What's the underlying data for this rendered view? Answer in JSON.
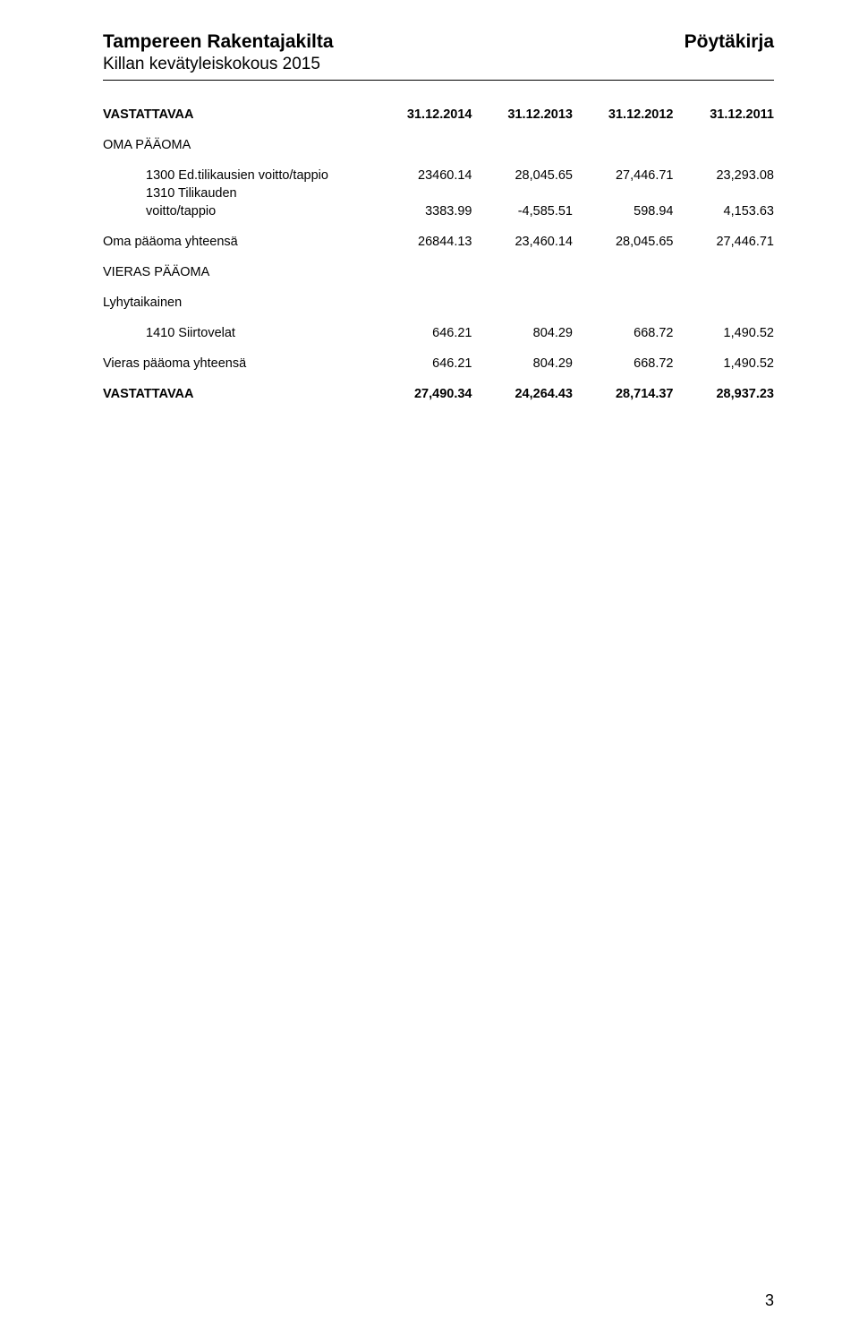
{
  "header": {
    "title": "Tampereen Rakentajakilta",
    "right": "Pöytäkirja",
    "subtitle": "Killan kevätyleiskokous 2015"
  },
  "columns": {
    "label": "VASTATTAVAA",
    "c1": "31.12.2014",
    "c2": "31.12.2013",
    "c3": "31.12.2012",
    "c4": "31.12.2011"
  },
  "sections": {
    "oma_paaoma_title": "OMA PÄÄOMA",
    "vieras_paaoma_title": "VIERAS PÄÄOMA",
    "lyhytaikainen_title": "Lyhytaikainen"
  },
  "rows": {
    "r1300": {
      "label": "1300 Ed.tilikausien voitto/tappio",
      "c1": "23460.14",
      "c2": "28,045.65",
      "c3": "27,446.71",
      "c4": "23,293.08"
    },
    "r1310a": {
      "label": "1310 Tilikauden"
    },
    "r1310b": {
      "label": "voitto/tappio",
      "c1": "3383.99",
      "c2": "-4,585.51",
      "c3": "598.94",
      "c4": "4,153.63"
    },
    "oma_yht": {
      "label": "Oma pääoma yhteensä",
      "c1": "26844.13",
      "c2": "23,460.14",
      "c3": "28,045.65",
      "c4": "27,446.71"
    },
    "r1410": {
      "label": "1410 Siirtovelat",
      "c1": "646.21",
      "c2": "804.29",
      "c3": "668.72",
      "c4": "1,490.52"
    },
    "vieras_yht": {
      "label": "Vieras pääoma yhteensä",
      "c1": "646.21",
      "c2": "804.29",
      "c3": "668.72",
      "c4": "1,490.52"
    },
    "vastattavaa_total": {
      "label": "VASTATTAVAA",
      "c1": "27,490.34",
      "c2": "24,264.43",
      "c3": "28,714.37",
      "c4": "28,937.23"
    }
  },
  "page_number": "3"
}
